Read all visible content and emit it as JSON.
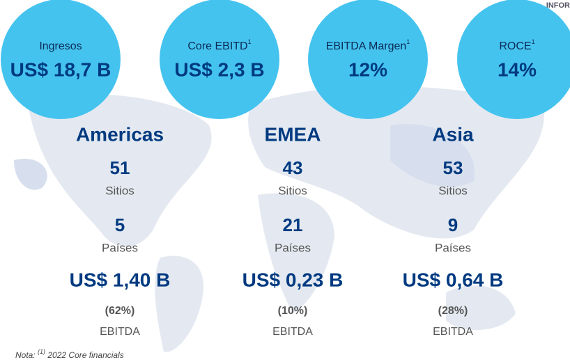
{
  "header": {
    "corner": "INFOR"
  },
  "kpis": [
    {
      "label": "Ingresos",
      "value": "US$ 18,7 B"
    },
    {
      "label": "Core EBITD",
      "note": "1",
      "value": "US$ 2,3 B"
    },
    {
      "label": "EBITDA Margen",
      "note": "1",
      "value": "12%"
    },
    {
      "label": "ROCE",
      "note": "1",
      "value": "14%"
    }
  ],
  "regions": [
    {
      "name": "Americas",
      "sites": 51,
      "sites_label": "Sitios",
      "countries": 5,
      "countries_label": "Países",
      "ebitda": "US$ 1,40 B",
      "share": "(62%)",
      "ebitda_label": "EBITDA"
    },
    {
      "name": "EMEA",
      "sites": 43,
      "sites_label": "Sitios",
      "countries": 21,
      "countries_label": "Países",
      "ebitda": "US$ 0,23 B",
      "share": "(10%)",
      "ebitda_label": "EBITDA"
    },
    {
      "name": "Asia",
      "sites": 53,
      "sites_label": "Sitios",
      "countries": 9,
      "countries_label": "Países",
      "ebitda": "US$ 0,64 B",
      "share": "(28%)",
      "ebitda_label": "EBITDA"
    }
  ],
  "footnote": {
    "prefix": "Nota:",
    "mark": "(1)",
    "text": "2022 Core financials"
  }
}
